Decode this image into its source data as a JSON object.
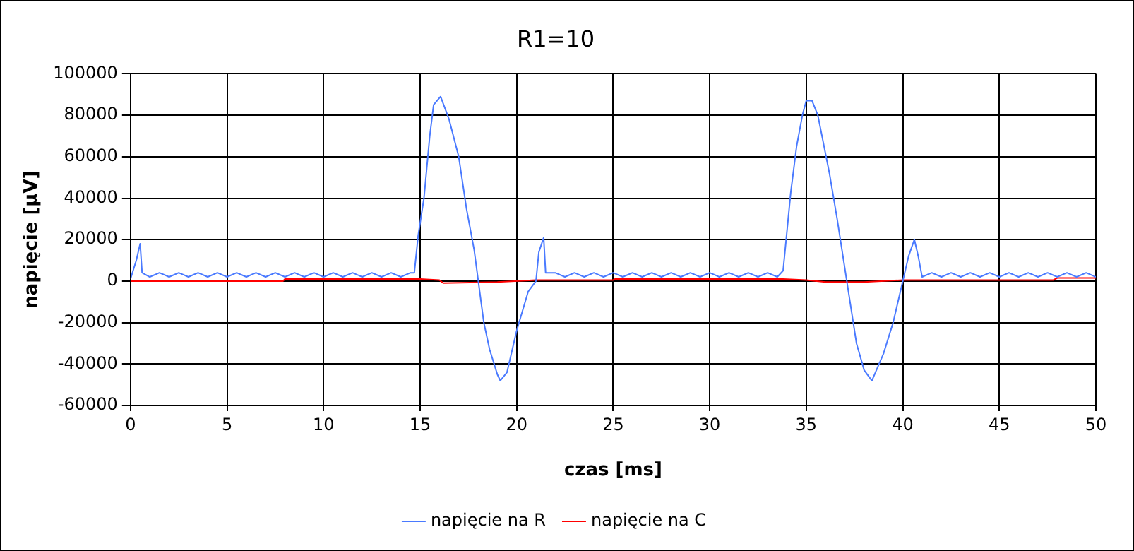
{
  "chart_data": {
    "type": "line",
    "title": "R1=10",
    "xlabel": "czas [ms]",
    "ylabel": "napięcie [µV]",
    "xlim": [
      0,
      50
    ],
    "xticks": [
      0,
      5,
      10,
      15,
      20,
      25,
      30,
      35,
      40,
      45,
      50
    ],
    "ylim": [
      -60000,
      100000
    ],
    "yticks": [
      -60000,
      -40000,
      -20000,
      0,
      20000,
      40000,
      60000,
      80000,
      100000
    ],
    "grid": true,
    "legend": "bottom",
    "marker": "none",
    "line_style": "solid",
    "series": [
      {
        "name": "napięcie na R",
        "color": "#4a7aff",
        "x": [
          0,
          0.3,
          0.5,
          0.6,
          0.8,
          1,
          1.5,
          2,
          2.5,
          3,
          3.5,
          4,
          4.5,
          5,
          5.5,
          6,
          6.5,
          7,
          7.5,
          8,
          8.5,
          9,
          9.5,
          10,
          10.5,
          11,
          11.5,
          12,
          12.5,
          13,
          13.5,
          14,
          14.5,
          14.7,
          14.9,
          15.2,
          15.5,
          15.7,
          16.06,
          16.5,
          17,
          17.4,
          17.8,
          18.3,
          18.6,
          19,
          19.15,
          19.5,
          20,
          20.6,
          21,
          21.15,
          21.4,
          21.5,
          22,
          22.5,
          23,
          23.5,
          24,
          24.5,
          25,
          25.5,
          26,
          26.5,
          27,
          27.5,
          28,
          28.5,
          29,
          29.5,
          30,
          30.5,
          31,
          31.5,
          32,
          32.5,
          33,
          33.5,
          33.8,
          34.2,
          34.5,
          34.8,
          35,
          35.3,
          35.6,
          36.2,
          36.6,
          37.1,
          37.6,
          38,
          38.4,
          39,
          39.5,
          40,
          40.3,
          40.6,
          40.8,
          41,
          41.5,
          42,
          42.5,
          43,
          43.5,
          44,
          44.5,
          45,
          45.5,
          46,
          46.5,
          47,
          47.5,
          48,
          48.5,
          49,
          49.5,
          50
        ],
        "values": [
          1000,
          10000,
          18000,
          4000,
          3000,
          2000,
          4000,
          2000,
          4000,
          2000,
          4000,
          2000,
          4000,
          2000,
          4000,
          2000,
          4000,
          2000,
          4000,
          2000,
          4000,
          2000,
          4000,
          2000,
          4000,
          2000,
          4000,
          2000,
          4000,
          2000,
          4000,
          2000,
          4000,
          4000,
          22000,
          40000,
          70000,
          85000,
          89000,
          78000,
          60000,
          35000,
          15000,
          -20000,
          -33000,
          -45000,
          -48000,
          -44000,
          -24000,
          -5000,
          0,
          14000,
          21000,
          4000,
          4000,
          2000,
          4000,
          2000,
          4000,
          2000,
          4000,
          2000,
          4000,
          2000,
          4000,
          2000,
          4000,
          2000,
          4000,
          2000,
          4000,
          2000,
          4000,
          2000,
          4000,
          2000,
          4000,
          2000,
          5000,
          43000,
          65000,
          80000,
          87000,
          87000,
          80000,
          52000,
          30000,
          0,
          -30000,
          -43000,
          -48000,
          -35000,
          -20000,
          0,
          12000,
          20000,
          12000,
          2000,
          4000,
          2000,
          4000,
          2000,
          4000,
          2000,
          4000,
          2000,
          4000,
          2000,
          4000,
          2000,
          4000,
          2000,
          4000,
          2000,
          4000,
          2000
        ]
      },
      {
        "name": "napięcie na C",
        "color": "#ff0000",
        "x": [
          0,
          7.9,
          8,
          15,
          16,
          16.2,
          19,
          21,
          25,
          25.1,
          33.8,
          35,
          36,
          38,
          40,
          47.8,
          48,
          50
        ],
        "values": [
          0,
          0,
          1000,
          1000,
          500,
          -1000,
          -500,
          500,
          500,
          1000,
          1000,
          500,
          -500,
          -500,
          500,
          500,
          1500,
          1500
        ]
      }
    ]
  }
}
